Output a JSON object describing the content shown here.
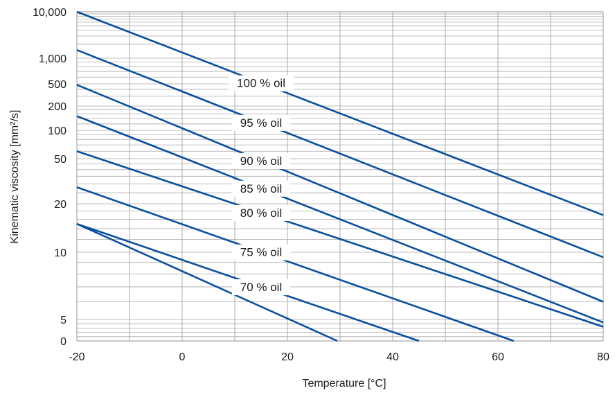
{
  "chart_data": {
    "type": "line",
    "title": "",
    "xlabel": "Temperature [°C]",
    "ylabel": "Kinematic viscosity [mm²/s]",
    "xlim": [
      -20,
      80
    ],
    "x_ticks": [
      "-20",
      "0",
      "20",
      "40",
      "60",
      "80"
    ],
    "y_ticks": [
      "10,000",
      "1,000",
      "500",
      "200",
      "100",
      "50",
      "20",
      "10",
      "5",
      "0"
    ],
    "grid": true,
    "line_color": "#0a4f9e",
    "grid_color": "#a8a8a8",
    "series": [
      {
        "name": "100 % oil",
        "x": [
          -20,
          80
        ],
        "y": [
          10000,
          17
        ]
      },
      {
        "name": "95 % oil",
        "x": [
          -20,
          80
        ],
        "y": [
          1500,
          9.5
        ]
      },
      {
        "name": "90 % oil",
        "x": [
          -20,
          80
        ],
        "y": [
          480,
          6
        ]
      },
      {
        "name": "85 % oil",
        "x": [
          -20,
          80
        ],
        "y": [
          150,
          4.3
        ]
      },
      {
        "name": "80 % oil",
        "x": [
          -20,
          80
        ],
        "y": [
          60,
          3.3
        ]
      },
      {
        "name": "75 % oil",
        "x": [
          -20,
          63
        ],
        "y": [
          28,
          0
        ]
      },
      {
        "name": "70 % oil",
        "x": [
          -20,
          45
        ],
        "y": [
          15,
          0
        ]
      },
      {
        "name": "",
        "x": [
          -20,
          29.5
        ],
        "y": [
          15,
          0
        ]
      }
    ]
  }
}
